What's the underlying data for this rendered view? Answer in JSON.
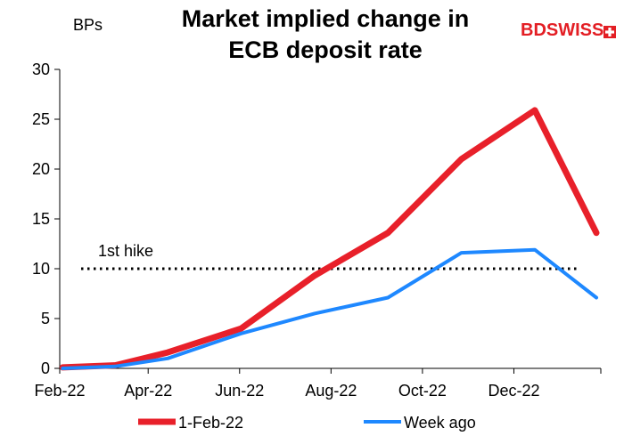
{
  "title_lines": [
    "Market implied change in",
    "ECB deposit rate"
  ],
  "y_unit": "BPs",
  "brand": {
    "part1": "BD",
    "part2": "SWISS",
    "color1": "#e31e24",
    "color2": "#e31e24"
  },
  "annotation": {
    "text": "1st hike",
    "y": 10
  },
  "chart_data": {
    "type": "line",
    "title": "Market implied change in ECB deposit rate",
    "ylabel": "BPs",
    "ylim": [
      0,
      30
    ],
    "yticks": [
      0,
      5,
      10,
      15,
      20,
      25,
      30
    ],
    "xlim": [
      "2022-02-01",
      "2023-01-28"
    ],
    "xticks": [
      {
        "date": "2022-02-01",
        "label": "Feb-22"
      },
      {
        "date": "2022-04-01",
        "label": "Apr-22"
      },
      {
        "date": "2022-06-01",
        "label": "Jun-22"
      },
      {
        "date": "2022-08-01",
        "label": "Aug-22"
      },
      {
        "date": "2022-10-01",
        "label": "Oct-22"
      },
      {
        "date": "2022-12-01",
        "label": "Dec-22"
      }
    ],
    "legend_position": "bottom",
    "series": [
      {
        "name": "1-Feb-22",
        "color": "#e8202a",
        "points": [
          [
            "2022-02-03",
            0.1
          ],
          [
            "2022-03-10",
            0.3
          ],
          [
            "2022-04-14",
            1.6
          ],
          [
            "2022-06-02",
            4.0
          ],
          [
            "2022-07-21",
            9.3
          ],
          [
            "2022-09-08",
            13.6
          ],
          [
            "2022-10-27",
            21.0
          ],
          [
            "2022-12-15",
            25.9
          ],
          [
            "2023-01-25",
            13.6
          ]
        ]
      },
      {
        "name": "Week ago",
        "color": "#1e88ff",
        "points": [
          [
            "2022-02-03",
            0.0
          ],
          [
            "2022-03-10",
            0.2
          ],
          [
            "2022-04-14",
            1.0
          ],
          [
            "2022-06-02",
            3.5
          ],
          [
            "2022-07-21",
            5.5
          ],
          [
            "2022-09-08",
            7.1
          ],
          [
            "2022-10-27",
            11.6
          ],
          [
            "2022-12-15",
            11.9
          ],
          [
            "2023-01-25",
            7.1
          ]
        ]
      }
    ],
    "reference_lines": [
      {
        "y": 10,
        "style": "dotted",
        "color": "#000000"
      }
    ]
  }
}
